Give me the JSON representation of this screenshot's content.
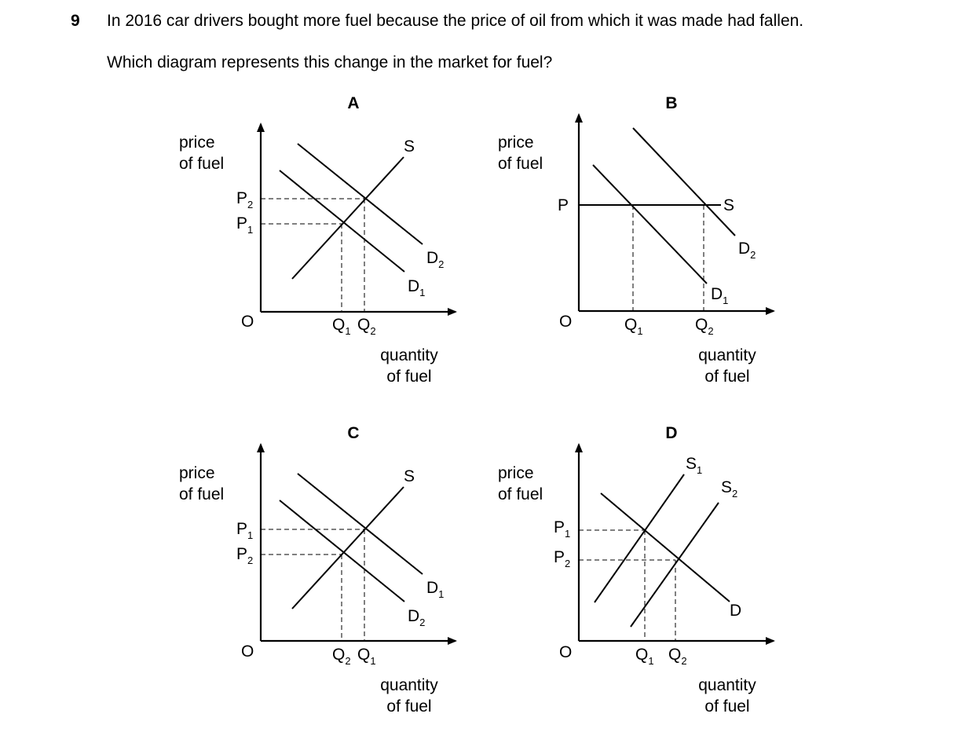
{
  "question": {
    "number": "9",
    "text": "In 2016 car drivers bought more fuel because the price of oil from which it was made had fallen.",
    "prompt": "Which diagram represents this change in the market for fuel?"
  },
  "axes": {
    "y_label_line1": "price",
    "y_label_line2": "of fuel",
    "x_label_line1": "quantity",
    "x_label_line2": "of fuel",
    "origin": "O"
  },
  "diagrams": {
    "A": {
      "title": "A",
      "labels": {
        "S": "S",
        "D2": "D",
        "D2_sub": "2",
        "D1": "D",
        "D1_sub": "1",
        "P2": "P",
        "P2_sub": "2",
        "P1": "P",
        "P1_sub": "1",
        "Q1": "Q",
        "Q1_sub": "1",
        "Q2": "Q",
        "Q2_sub": "2"
      }
    },
    "B": {
      "title": "B",
      "labels": {
        "P": "P",
        "S": "S",
        "D2": "D",
        "D2_sub": "2",
        "D1": "D",
        "D1_sub": "1",
        "Q1": "Q",
        "Q1_sub": "1",
        "Q2": "Q",
        "Q2_sub": "2"
      }
    },
    "C": {
      "title": "C",
      "labels": {
        "S": "S",
        "D1": "D",
        "D1_sub": "1",
        "D2": "D",
        "D2_sub": "2",
        "P1": "P",
        "P1_sub": "1",
        "P2": "P",
        "P2_sub": "2",
        "Q2": "Q",
        "Q2_sub": "2",
        "Q1": "Q",
        "Q1_sub": "1"
      }
    },
    "D": {
      "title": "D",
      "labels": {
        "S1": "S",
        "S1_sub": "1",
        "S2": "S",
        "S2_sub": "2",
        "D": "D",
        "P1": "P",
        "P1_sub": "1",
        "P2": "P",
        "P2_sub": "2",
        "Q1": "Q",
        "Q1_sub": "1",
        "Q2": "Q",
        "Q2_sub": "2"
      }
    }
  }
}
